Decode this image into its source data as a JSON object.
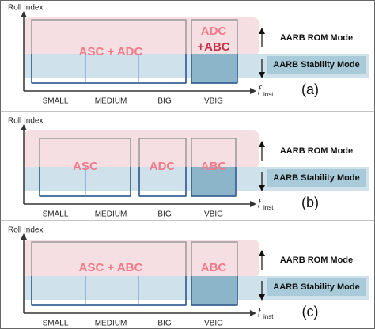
{
  "panels": [
    {
      "y_axis_label": "Roll Index",
      "x_axis_label": "f",
      "x_axis_subscript": "inst",
      "categories": [
        "SMALL",
        "MEDIUM",
        "BIG",
        "VBIG"
      ],
      "regions": [
        {
          "lines": [
            "ASC + ADC"
          ]
        },
        {
          "lines": [
            "ADC",
            "+ABC"
          ]
        }
      ],
      "modes": [
        "AARB ROM Mode",
        "AARB Stability Mode"
      ],
      "caption": "(a)"
    },
    {
      "y_axis_label": "Roll Index",
      "x_axis_label": "f",
      "x_axis_subscript": "inst",
      "categories": [
        "SMALL",
        "MEDIUM",
        "BIG",
        "VBIG"
      ],
      "regions": [
        {
          "lines": [
            "ASC"
          ]
        },
        {
          "lines": [
            "ADC"
          ]
        },
        {
          "lines": [
            "ABC"
          ]
        }
      ],
      "modes": [
        "AARB ROM Mode",
        "AARB Stability Mode"
      ],
      "caption": "(b)"
    },
    {
      "y_axis_label": "Roll Index",
      "x_axis_label": "f",
      "x_axis_subscript": "inst",
      "categories": [
        "SMALL",
        "MEDIUM",
        "BIG",
        "VBIG"
      ],
      "regions": [
        {
          "lines": [
            "ASC + ABC"
          ]
        },
        {
          "lines": [
            "ABC"
          ]
        }
      ],
      "modes": [
        "AARB ROM Mode",
        "AARB Stability Mode"
      ],
      "caption": "(c)"
    }
  ]
}
